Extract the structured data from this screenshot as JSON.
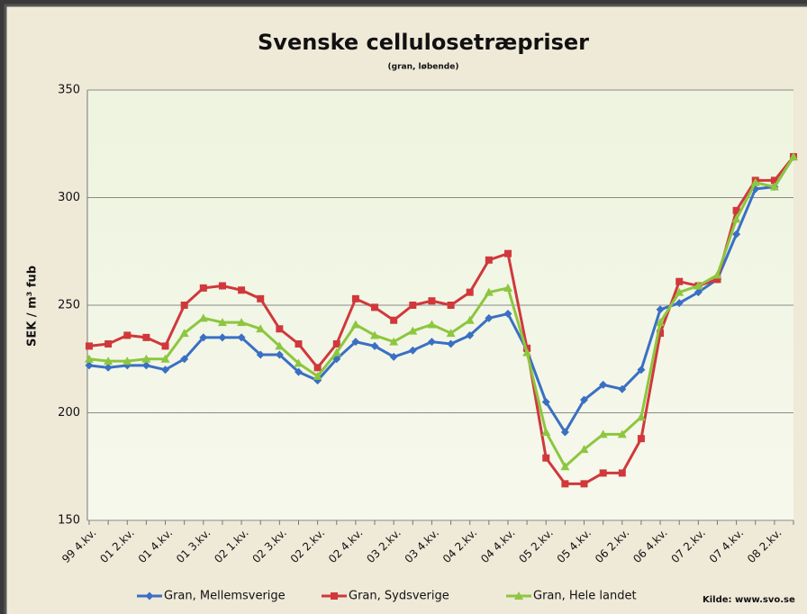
{
  "chart_data": {
    "type": "line",
    "title": "Svenske cellulosetræpriser",
    "subtitle": "(gran, løbende)",
    "y_label": "SEK / m³ fub",
    "source": "Kilde: www.svo.se",
    "categories": [
      "99 4.kv.",
      null,
      "01 2.kv.",
      null,
      "01 4.kv.",
      null,
      "01 3.kv.",
      null,
      "02 1.kv.",
      null,
      "02 3.kv.",
      null,
      "02 2.kv.",
      null,
      "02 4.kv.",
      null,
      "03 2.kv.",
      null,
      "03 4.kv.",
      null,
      "04 2.kv.",
      null,
      "04 4.kv.",
      null,
      "05 2.kv.",
      null,
      "05 4.kv.",
      null,
      "06 2.kv.",
      null,
      "06 4.kv.",
      null,
      "07 2.kv.",
      null,
      "07 4.kv.",
      null,
      "08 2.kv.",
      null
    ],
    "series": [
      {
        "name": "Gran, Mellemsverige",
        "color": "#3a6fc4",
        "marker": "diamond",
        "values": [
          222,
          221,
          222,
          222,
          220,
          225,
          235,
          235,
          235,
          227,
          227,
          219,
          215,
          225,
          233,
          231,
          226,
          229,
          233,
          232,
          236,
          244,
          246,
          229,
          205,
          191,
          206,
          213,
          211,
          220,
          248,
          251,
          256,
          262,
          283,
          304,
          305,
          319
        ]
      },
      {
        "name": "Gran, Sydsverige",
        "color": "#d0383c",
        "marker": "square",
        "values": [
          231,
          232,
          236,
          235,
          231,
          250,
          258,
          259,
          257,
          253,
          239,
          232,
          221,
          232,
          253,
          249,
          243,
          250,
          252,
          250,
          256,
          271,
          274,
          230,
          179,
          167,
          167,
          172,
          172,
          188,
          237,
          261,
          259,
          262,
          294,
          308,
          308,
          319
        ]
      },
      {
        "name": "Gran, Hele landet",
        "color": "#8dc63f",
        "marker": "triangle",
        "values": [
          225,
          224,
          224,
          225,
          225,
          237,
          244,
          242,
          242,
          239,
          231,
          223,
          217,
          228,
          241,
          236,
          233,
          238,
          241,
          237,
          243,
          256,
          258,
          228,
          191,
          175,
          183,
          190,
          190,
          198,
          242,
          256,
          259,
          264,
          290,
          307,
          305,
          319
        ]
      }
    ],
    "ylim": [
      150,
      350
    ],
    "yticks": [
      150,
      200,
      250,
      300,
      350
    ],
    "grid": true
  }
}
